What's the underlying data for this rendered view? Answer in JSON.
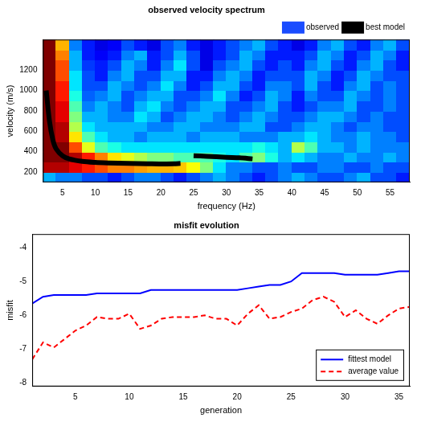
{
  "chart_data": [
    {
      "type": "heatmap",
      "title": "observed velocity spectrum",
      "x_label": "frequency (Hz)",
      "y_label": "velocity (m/s)",
      "xlim": [
        2,
        58
      ],
      "xticks": [
        5,
        10,
        15,
        20,
        25,
        30,
        35,
        40,
        45,
        50,
        55
      ],
      "ylim": [
        100,
        1500
      ],
      "yticks": [
        200,
        400,
        600,
        800,
        1000,
        1200
      ],
      "grid": false,
      "legend": "top-right",
      "zlim": [
        0,
        1
      ],
      "x_edges": [
        2,
        4,
        6,
        8,
        10,
        12,
        14,
        16,
        18,
        20,
        22,
        24,
        26,
        28,
        30,
        32,
        34,
        36,
        38,
        40,
        42,
        44,
        46,
        48,
        50,
        52,
        54,
        56,
        58
      ],
      "y_edges": [
        100,
        200,
        300,
        400,
        500,
        600,
        700,
        800,
        900,
        1000,
        1100,
        1200,
        1300,
        1400,
        1500
      ],
      "cells": [
        [
          0.3,
          0.25,
          0.25,
          0.2,
          0.2,
          0.15,
          0.2,
          0.25,
          0.25,
          0.2,
          0.15,
          0.2,
          0.25,
          0.3,
          0.25,
          0.2,
          0.15,
          0.2,
          0.25,
          0.3,
          0.25,
          0.2,
          0.2,
          0.25,
          0.3,
          0.2,
          0.2,
          0.15
        ],
        [
          0.95,
          0.95,
          0.9,
          0.85,
          0.8,
          0.75,
          0.75,
          0.72,
          0.7,
          0.7,
          0.68,
          0.62,
          0.5,
          0.35,
          0.25,
          0.25,
          0.2,
          0.2,
          0.25,
          0.2,
          0.2,
          0.25,
          0.25,
          0.2,
          0.2,
          0.25,
          0.2,
          0.2
        ],
        [
          1.0,
          1.0,
          0.95,
          0.85,
          0.75,
          0.65,
          0.6,
          0.55,
          0.5,
          0.5,
          0.45,
          0.45,
          0.45,
          0.4,
          0.35,
          0.45,
          0.5,
          0.4,
          0.3,
          0.35,
          0.3,
          0.25,
          0.25,
          0.3,
          0.25,
          0.25,
          0.3,
          0.25
        ],
        [
          1.0,
          1.0,
          0.8,
          0.6,
          0.45,
          0.4,
          0.35,
          0.35,
          0.35,
          0.35,
          0.35,
          0.35,
          0.35,
          0.35,
          0.35,
          0.35,
          0.4,
          0.35,
          0.3,
          0.55,
          0.45,
          0.3,
          0.3,
          0.25,
          0.3,
          0.25,
          0.25,
          0.25
        ],
        [
          1.0,
          0.95,
          0.65,
          0.45,
          0.35,
          0.3,
          0.3,
          0.25,
          0.3,
          0.3,
          0.3,
          0.25,
          0.3,
          0.3,
          0.3,
          0.25,
          0.25,
          0.25,
          0.3,
          0.3,
          0.35,
          0.3,
          0.25,
          0.25,
          0.3,
          0.25,
          0.25,
          0.2
        ],
        [
          1.0,
          0.95,
          0.55,
          0.35,
          0.3,
          0.3,
          0.3,
          0.3,
          0.25,
          0.25,
          0.3,
          0.3,
          0.25,
          0.25,
          0.25,
          0.3,
          0.3,
          0.2,
          0.2,
          0.25,
          0.3,
          0.3,
          0.25,
          0.2,
          0.25,
          0.25,
          0.2,
          0.2
        ],
        [
          1.0,
          0.9,
          0.5,
          0.3,
          0.3,
          0.25,
          0.25,
          0.35,
          0.3,
          0.2,
          0.25,
          0.3,
          0.3,
          0.25,
          0.2,
          0.25,
          0.3,
          0.25,
          0.2,
          0.2,
          0.25,
          0.3,
          0.3,
          0.25,
          0.2,
          0.25,
          0.2,
          0.2
        ],
        [
          1.0,
          0.9,
          0.45,
          0.25,
          0.3,
          0.25,
          0.2,
          0.3,
          0.35,
          0.25,
          0.2,
          0.25,
          0.3,
          0.3,
          0.2,
          0.2,
          0.25,
          0.3,
          0.2,
          0.15,
          0.2,
          0.25,
          0.25,
          0.3,
          0.2,
          0.2,
          0.25,
          0.2
        ],
        [
          1.0,
          0.85,
          0.4,
          0.22,
          0.25,
          0.3,
          0.2,
          0.25,
          0.3,
          0.3,
          0.2,
          0.2,
          0.25,
          0.35,
          0.25,
          0.15,
          0.2,
          0.3,
          0.25,
          0.15,
          0.25,
          0.2,
          0.2,
          0.3,
          0.25,
          0.2,
          0.25,
          0.2
        ],
        [
          1.0,
          0.85,
          0.35,
          0.2,
          0.2,
          0.3,
          0.25,
          0.2,
          0.25,
          0.35,
          0.25,
          0.15,
          0.2,
          0.3,
          0.3,
          0.2,
          0.15,
          0.25,
          0.25,
          0.2,
          0.3,
          0.2,
          0.15,
          0.25,
          0.3,
          0.2,
          0.25,
          0.2
        ],
        [
          1.0,
          0.8,
          0.35,
          0.2,
          0.15,
          0.25,
          0.3,
          0.2,
          0.2,
          0.3,
          0.3,
          0.15,
          0.15,
          0.25,
          0.3,
          0.25,
          0.15,
          0.2,
          0.2,
          0.2,
          0.3,
          0.25,
          0.15,
          0.2,
          0.3,
          0.25,
          0.2,
          0.2
        ],
        [
          1.0,
          0.8,
          0.3,
          0.18,
          0.15,
          0.2,
          0.3,
          0.25,
          0.15,
          0.25,
          0.35,
          0.2,
          0.1,
          0.2,
          0.25,
          0.3,
          0.2,
          0.15,
          0.2,
          0.15,
          0.25,
          0.3,
          0.2,
          0.15,
          0.25,
          0.3,
          0.2,
          0.15
        ],
        [
          1.0,
          0.75,
          0.3,
          0.15,
          0.12,
          0.15,
          0.25,
          0.3,
          0.15,
          0.2,
          0.3,
          0.2,
          0.1,
          0.15,
          0.2,
          0.3,
          0.25,
          0.15,
          0.15,
          0.15,
          0.2,
          0.3,
          0.25,
          0.15,
          0.2,
          0.3,
          0.25,
          0.15
        ],
        [
          1.0,
          0.7,
          0.25,
          0.15,
          0.1,
          0.12,
          0.2,
          0.15,
          0.1,
          0.2,
          0.25,
          0.15,
          0.1,
          0.15,
          0.2,
          0.25,
          0.3,
          0.2,
          0.15,
          0.1,
          0.15,
          0.25,
          0.3,
          0.2,
          0.15,
          0.25,
          0.3,
          0.2
        ]
      ],
      "series": [
        {
          "name": "observed",
          "color": "#1a4cff"
        },
        {
          "name": "best model",
          "color": "#000000",
          "line_style": "solid",
          "x": [
            2.5,
            3,
            3.5,
            4,
            5,
            6,
            8,
            10,
            12,
            15,
            18,
            20,
            22,
            23,
            24,
            25,
            27,
            30,
            32,
            34
          ],
          "values": [
            1000,
            700,
            520,
            430,
            360,
            330,
            305,
            295,
            290,
            285,
            282,
            280,
            282,
            285,
            null,
            360,
            355,
            345,
            340,
            330
          ]
        }
      ]
    },
    {
      "type": "line",
      "title": "misfit evolution",
      "x_label": "generation",
      "y_label": "misfit",
      "xlim": [
        1,
        36
      ],
      "xticks": [
        5,
        10,
        15,
        20,
        25,
        30,
        35
      ],
      "ylim": [
        -8.1,
        -3.6
      ],
      "yticks": [
        -8,
        -7,
        -6,
        -5,
        -4
      ],
      "grid": false,
      "legend": "bottom-right",
      "x": [
        1,
        2,
        3,
        4,
        5,
        6,
        7,
        8,
        9,
        10,
        11,
        12,
        13,
        14,
        15,
        16,
        17,
        18,
        19,
        20,
        21,
        22,
        23,
        24,
        25,
        26,
        27,
        28,
        29,
        30,
        31,
        32,
        33,
        34,
        35,
        36
      ],
      "series": [
        {
          "name": "fittest model",
          "color": "#0000ff",
          "line_style": "solid",
          "values": [
            -5.65,
            -5.45,
            -5.4,
            -5.4,
            -5.4,
            -5.4,
            -5.35,
            -5.35,
            -5.35,
            -5.35,
            -5.35,
            -5.25,
            -5.25,
            -5.25,
            -5.25,
            -5.25,
            -5.25,
            -5.25,
            -5.25,
            -5.25,
            -5.2,
            -5.15,
            -5.1,
            -5.1,
            -5.0,
            -4.75,
            -4.75,
            -4.75,
            -4.75,
            -4.8,
            -4.8,
            -4.8,
            -4.8,
            -4.75,
            -4.7,
            -4.7
          ]
        },
        {
          "name": "average value",
          "color": "#ff0000",
          "line_style": "dashed",
          "values": [
            -7.3,
            -6.8,
            -6.95,
            -6.7,
            -6.45,
            -6.3,
            -6.05,
            -6.1,
            -6.1,
            -5.95,
            -6.4,
            -6.3,
            -6.1,
            -6.05,
            -6.05,
            -6.05,
            -6.0,
            -6.1,
            -6.1,
            -6.3,
            -5.95,
            -5.7,
            -6.1,
            -6.05,
            -5.9,
            -5.8,
            -5.55,
            -5.45,
            -5.6,
            -6.05,
            -5.85,
            -6.1,
            -6.25,
            -6.0,
            -5.8,
            -5.75
          ]
        }
      ]
    }
  ]
}
